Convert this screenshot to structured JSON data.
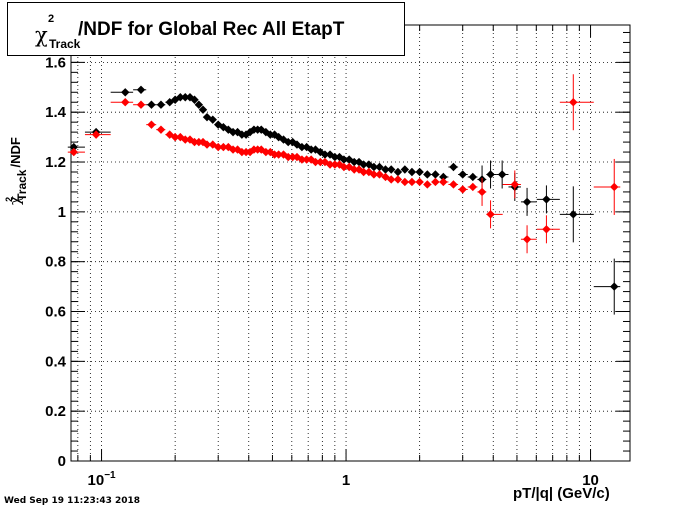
{
  "title": {
    "symbol": "χ",
    "superscript": "2",
    "subscript": "Track",
    "text": "/NDF for Global Rec All EtapT"
  },
  "y_axis_label": {
    "symbol": "χ",
    "superscript": "2",
    "subscript": "Track",
    "text": "/NDF"
  },
  "x_axis_label": "pT/|q| (GeV/c)",
  "datestamp": "Wed Sep 19 11:23:43 2018",
  "colors": {
    "series_black": "#000000",
    "series_red": "#ff0000",
    "grid": "#000000"
  },
  "chart_data": {
    "type": "scatter",
    "x_scale": "log",
    "xlim": [
      0.075,
      14.5
    ],
    "ylim": [
      0,
      1.75
    ],
    "grid": true,
    "y_ticks": [
      0,
      0.2,
      0.4,
      0.6,
      0.8,
      1,
      1.2,
      1.4,
      1.6
    ],
    "y_tick_labels": [
      "0",
      "0.2",
      "0.4",
      "0.6",
      "0.8",
      "1",
      "1.2",
      "1.4",
      "1.6"
    ],
    "x_ticks_major": [
      0.1,
      1,
      10
    ],
    "x_tick_labels": [
      "10−1",
      "1",
      "10"
    ],
    "series": [
      {
        "color": "#000000",
        "points": [
          {
            "x": 0.077,
            "y": 1.26
          },
          {
            "x": 0.095,
            "y": 1.32
          },
          {
            "x": 0.125,
            "y": 1.48
          },
          {
            "x": 0.145,
            "y": 1.49
          },
          {
            "x": 0.16,
            "y": 1.43
          },
          {
            "x": 0.175,
            "y": 1.43
          },
          {
            "x": 0.19,
            "y": 1.44
          },
          {
            "x": 0.2,
            "y": 1.45
          },
          {
            "x": 0.21,
            "y": 1.46
          },
          {
            "x": 0.22,
            "y": 1.46
          },
          {
            "x": 0.23,
            "y": 1.46
          },
          {
            "x": 0.24,
            "y": 1.45
          },
          {
            "x": 0.25,
            "y": 1.43
          },
          {
            "x": 0.26,
            "y": 1.41
          },
          {
            "x": 0.27,
            "y": 1.38
          },
          {
            "x": 0.285,
            "y": 1.37
          },
          {
            "x": 0.3,
            "y": 1.35
          },
          {
            "x": 0.315,
            "y": 1.34
          },
          {
            "x": 0.33,
            "y": 1.33
          },
          {
            "x": 0.345,
            "y": 1.32
          },
          {
            "x": 0.36,
            "y": 1.32
          },
          {
            "x": 0.375,
            "y": 1.31
          },
          {
            "x": 0.39,
            "y": 1.31
          },
          {
            "x": 0.405,
            "y": 1.32
          },
          {
            "x": 0.42,
            "y": 1.33
          },
          {
            "x": 0.435,
            "y": 1.33
          },
          {
            "x": 0.45,
            "y": 1.33
          },
          {
            "x": 0.47,
            "y": 1.32
          },
          {
            "x": 0.49,
            "y": 1.31
          },
          {
            "x": 0.51,
            "y": 1.31
          },
          {
            "x": 0.53,
            "y": 1.3
          },
          {
            "x": 0.555,
            "y": 1.29
          },
          {
            "x": 0.58,
            "y": 1.28
          },
          {
            "x": 0.605,
            "y": 1.28
          },
          {
            "x": 0.63,
            "y": 1.27
          },
          {
            "x": 0.66,
            "y": 1.26
          },
          {
            "x": 0.69,
            "y": 1.26
          },
          {
            "x": 0.72,
            "y": 1.25
          },
          {
            "x": 0.75,
            "y": 1.25
          },
          {
            "x": 0.785,
            "y": 1.24
          },
          {
            "x": 0.82,
            "y": 1.23
          },
          {
            "x": 0.86,
            "y": 1.23
          },
          {
            "x": 0.9,
            "y": 1.22
          },
          {
            "x": 0.94,
            "y": 1.22
          },
          {
            "x": 0.98,
            "y": 1.21
          },
          {
            "x": 1.03,
            "y": 1.21
          },
          {
            "x": 1.08,
            "y": 1.2
          },
          {
            "x": 1.13,
            "y": 1.2
          },
          {
            "x": 1.18,
            "y": 1.19
          },
          {
            "x": 1.24,
            "y": 1.19
          },
          {
            "x": 1.3,
            "y": 1.18
          },
          {
            "x": 1.37,
            "y": 1.18
          },
          {
            "x": 1.45,
            "y": 1.17
          },
          {
            "x": 1.53,
            "y": 1.17
          },
          {
            "x": 1.63,
            "y": 1.16
          },
          {
            "x": 1.74,
            "y": 1.17
          },
          {
            "x": 1.86,
            "y": 1.16
          },
          {
            "x": 2.0,
            "y": 1.16
          },
          {
            "x": 2.15,
            "y": 1.15
          },
          {
            "x": 2.32,
            "y": 1.15
          },
          {
            "x": 2.5,
            "y": 1.14
          },
          {
            "x": 2.75,
            "y": 1.18
          },
          {
            "x": 3.0,
            "y": 1.15
          },
          {
            "x": 3.3,
            "y": 1.14
          },
          {
            "x": 3.6,
            "y": 1.13
          },
          {
            "x": 3.9,
            "y": 1.15
          },
          {
            "x": 4.35,
            "y": 1.15
          },
          {
            "x": 4.9,
            "y": 1.1
          },
          {
            "x": 5.5,
            "y": 1.04
          },
          {
            "x": 6.6,
            "y": 1.05
          },
          {
            "x": 8.5,
            "y": 0.99
          },
          {
            "x": 12.5,
            "y": 0.7
          }
        ]
      },
      {
        "color": "#ff0000",
        "points": [
          {
            "x": 0.077,
            "y": 1.24
          },
          {
            "x": 0.095,
            "y": 1.31
          },
          {
            "x": 0.125,
            "y": 1.44
          },
          {
            "x": 0.145,
            "y": 1.43
          },
          {
            "x": 0.16,
            "y": 1.35
          },
          {
            "x": 0.175,
            "y": 1.33
          },
          {
            "x": 0.19,
            "y": 1.31
          },
          {
            "x": 0.2,
            "y": 1.3
          },
          {
            "x": 0.21,
            "y": 1.3
          },
          {
            "x": 0.22,
            "y": 1.29
          },
          {
            "x": 0.23,
            "y": 1.29
          },
          {
            "x": 0.24,
            "y": 1.28
          },
          {
            "x": 0.25,
            "y": 1.28
          },
          {
            "x": 0.26,
            "y": 1.28
          },
          {
            "x": 0.27,
            "y": 1.27
          },
          {
            "x": 0.285,
            "y": 1.27
          },
          {
            "x": 0.3,
            "y": 1.26
          },
          {
            "x": 0.315,
            "y": 1.26
          },
          {
            "x": 0.33,
            "y": 1.26
          },
          {
            "x": 0.345,
            "y": 1.25
          },
          {
            "x": 0.36,
            "y": 1.25
          },
          {
            "x": 0.375,
            "y": 1.24
          },
          {
            "x": 0.39,
            "y": 1.24
          },
          {
            "x": 0.405,
            "y": 1.24
          },
          {
            "x": 0.42,
            "y": 1.25
          },
          {
            "x": 0.435,
            "y": 1.25
          },
          {
            "x": 0.45,
            "y": 1.25
          },
          {
            "x": 0.47,
            "y": 1.24
          },
          {
            "x": 0.49,
            "y": 1.24
          },
          {
            "x": 0.51,
            "y": 1.23
          },
          {
            "x": 0.53,
            "y": 1.23
          },
          {
            "x": 0.555,
            "y": 1.23
          },
          {
            "x": 0.58,
            "y": 1.22
          },
          {
            "x": 0.605,
            "y": 1.22
          },
          {
            "x": 0.63,
            "y": 1.22
          },
          {
            "x": 0.66,
            "y": 1.21
          },
          {
            "x": 0.69,
            "y": 1.21
          },
          {
            "x": 0.72,
            "y": 1.21
          },
          {
            "x": 0.75,
            "y": 1.2
          },
          {
            "x": 0.785,
            "y": 1.2
          },
          {
            "x": 0.82,
            "y": 1.2
          },
          {
            "x": 0.86,
            "y": 1.19
          },
          {
            "x": 0.9,
            "y": 1.19
          },
          {
            "x": 0.94,
            "y": 1.19
          },
          {
            "x": 0.98,
            "y": 1.18
          },
          {
            "x": 1.03,
            "y": 1.18
          },
          {
            "x": 1.08,
            "y": 1.17
          },
          {
            "x": 1.13,
            "y": 1.17
          },
          {
            "x": 1.18,
            "y": 1.16
          },
          {
            "x": 1.24,
            "y": 1.16
          },
          {
            "x": 1.3,
            "y": 1.15
          },
          {
            "x": 1.37,
            "y": 1.15
          },
          {
            "x": 1.45,
            "y": 1.14
          },
          {
            "x": 1.53,
            "y": 1.13
          },
          {
            "x": 1.63,
            "y": 1.13
          },
          {
            "x": 1.74,
            "y": 1.12
          },
          {
            "x": 1.86,
            "y": 1.12
          },
          {
            "x": 2.0,
            "y": 1.12
          },
          {
            "x": 2.15,
            "y": 1.11
          },
          {
            "x": 2.32,
            "y": 1.12
          },
          {
            "x": 2.5,
            "y": 1.12
          },
          {
            "x": 2.75,
            "y": 1.11
          },
          {
            "x": 3.0,
            "y": 1.09
          },
          {
            "x": 3.3,
            "y": 1.1
          },
          {
            "x": 3.6,
            "y": 1.08
          },
          {
            "x": 3.9,
            "y": 0.99
          },
          {
            "x": 4.9,
            "y": 1.11
          },
          {
            "x": 5.5,
            "y": 0.89
          },
          {
            "x": 6.6,
            "y": 0.93
          },
          {
            "x": 8.5,
            "y": 1.44
          },
          {
            "x": 12.5,
            "y": 1.1
          }
        ]
      }
    ]
  }
}
